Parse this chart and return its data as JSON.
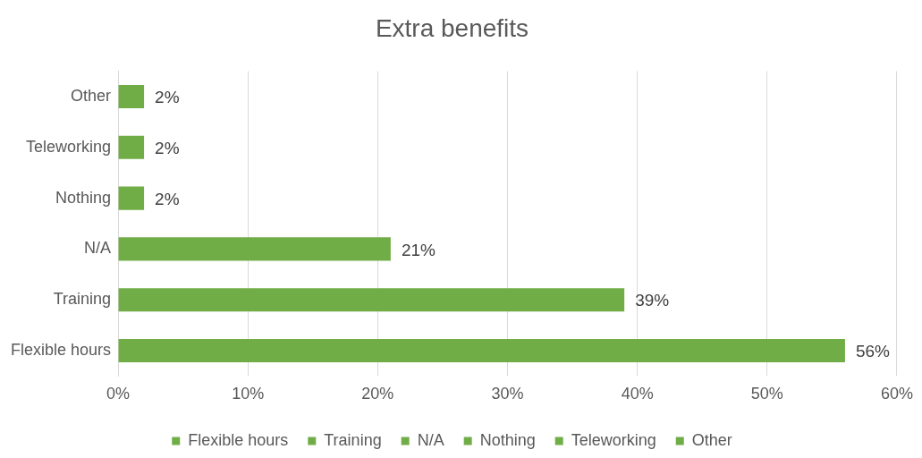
{
  "chart_data": {
    "type": "bar",
    "orientation": "horizontal",
    "stacked": true,
    "title": "Extra benefits",
    "categories": [
      "Other",
      "Teleworking",
      "Nothing",
      "N/A",
      "Training",
      "Flexible hours"
    ],
    "series": [
      {
        "name": "Flexible hours",
        "color": "#70ad47",
        "values": [
          null,
          null,
          null,
          null,
          null,
          56
        ],
        "value_labels": [
          null,
          null,
          null,
          null,
          null,
          "56%"
        ]
      },
      {
        "name": "Training",
        "color": "#70ad47",
        "values": [
          null,
          null,
          null,
          null,
          39,
          null
        ],
        "value_labels": [
          null,
          null,
          null,
          null,
          "39%",
          null
        ]
      },
      {
        "name": "N/A",
        "color": "#70ad47",
        "values": [
          null,
          null,
          null,
          21,
          null,
          null
        ],
        "value_labels": [
          null,
          null,
          null,
          "21%",
          null,
          null
        ]
      },
      {
        "name": "Nothing",
        "color": "#70ad47",
        "values": [
          null,
          null,
          2,
          null,
          null,
          null
        ],
        "value_labels": [
          null,
          null,
          "2%",
          null,
          null,
          null
        ]
      },
      {
        "name": "Teleworking",
        "color": "#70ad47",
        "values": [
          null,
          2,
          null,
          null,
          null,
          null
        ],
        "value_labels": [
          null,
          "2%",
          null,
          null,
          null,
          null
        ]
      },
      {
        "name": "Other",
        "color": "#70ad47",
        "values": [
          2,
          null,
          null,
          null,
          null,
          null
        ],
        "value_labels": [
          "2%",
          null,
          null,
          null,
          null,
          null
        ]
      }
    ],
    "xlim": [
      0,
      60
    ],
    "xticks": [
      {
        "value": 0,
        "label": "0%"
      },
      {
        "value": 10,
        "label": "10%"
      },
      {
        "value": 20,
        "label": "20%"
      },
      {
        "value": 30,
        "label": "30%"
      },
      {
        "value": 40,
        "label": "40%"
      },
      {
        "value": 50,
        "label": "50%"
      },
      {
        "value": 60,
        "label": "60%"
      }
    ],
    "grid": "x",
    "legend": "bottom"
  }
}
